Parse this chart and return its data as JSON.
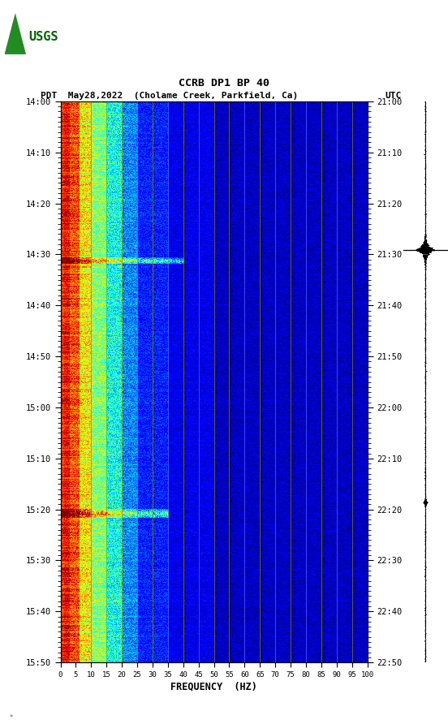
{
  "title_line1": "CCRB DP1 BP 40",
  "title_line2_left": "PDT  May28,2022  (Cholame Creek, Parkfield, Ca)",
  "title_line2_right": "UTC",
  "xlabel": "FREQUENCY  (HZ)",
  "freq_ticks": [
    0,
    5,
    10,
    15,
    20,
    25,
    30,
    35,
    40,
    45,
    50,
    55,
    60,
    65,
    70,
    75,
    80,
    85,
    90,
    95,
    100
  ],
  "time_ticks_left": [
    "14:00",
    "14:10",
    "14:20",
    "14:30",
    "14:40",
    "14:50",
    "15:00",
    "15:10",
    "15:20",
    "15:30",
    "15:40",
    "15:50"
  ],
  "time_ticks_right": [
    "21:00",
    "21:10",
    "21:20",
    "21:30",
    "21:40",
    "21:50",
    "22:00",
    "22:10",
    "22:20",
    "22:30",
    "22:40",
    "22:50"
  ],
  "freq_min": 0,
  "freq_max": 100,
  "n_time": 660,
  "n_freq": 400,
  "bg_color": "#ffffff",
  "vertical_line_color": "#8B8B00",
  "vertical_line_positions": [
    5,
    10,
    15,
    20,
    25,
    30,
    35,
    40,
    45,
    50,
    55,
    60,
    65,
    70,
    75,
    80,
    85,
    90,
    95,
    100
  ],
  "event_times_strong": [
    0.285,
    0.735
  ],
  "event_times_weak": [
    0.29,
    0.74
  ],
  "waveform_big_event_t": 0.735,
  "waveform_small_event_t": 0.285
}
